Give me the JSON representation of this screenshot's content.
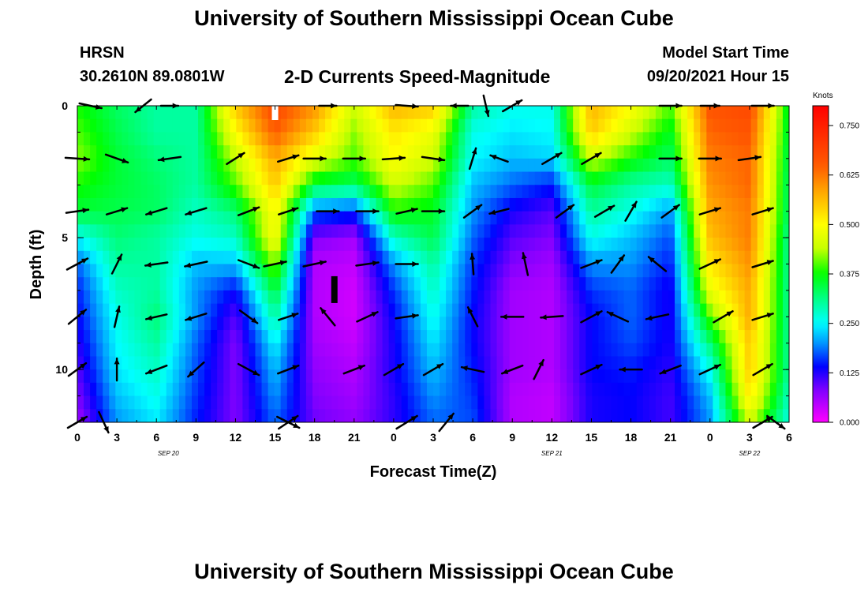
{
  "header": {
    "title_top": "University of Southern Mississippi Ocean Cube",
    "station": "HRSN",
    "coords": "30.2610N  89.0801W",
    "subtitle": "2-D Currents Speed-Magnitude",
    "model_start_label": "Model Start Time",
    "model_start_value": "09/20/2021 Hour 15"
  },
  "footer": {
    "title_bottom": "University of Southern Mississippi Ocean Cube"
  },
  "chart_data": {
    "type": "heatmap",
    "title": "2-D Currents Speed-Magnitude",
    "xlabel": "Forecast Time(Z)",
    "ylabel": "Depth (ft)",
    "colorbar_label": "Knots",
    "x_ticks": [
      "0",
      "3",
      "6",
      "9",
      "12",
      "15",
      "18",
      "21",
      "0",
      "3",
      "6",
      "9",
      "12",
      "15",
      "18",
      "21",
      "0",
      "3",
      "6"
    ],
    "date_labels": [
      {
        "text": "SEP 20",
        "tick_index": 2.3
      },
      {
        "text": "SEP 21",
        "tick_index": 12.0
      },
      {
        "text": "SEP 22",
        "tick_index": 17.0
      }
    ],
    "xlim": [
      0,
      54
    ],
    "ylim": [
      12,
      0
    ],
    "y_ticks": [
      "0",
      "5",
      "10"
    ],
    "y_tick_values": [
      0,
      5,
      10
    ],
    "colorbar_ticks": [
      "0.000",
      "0.125",
      "0.250",
      "0.375",
      "0.500",
      "0.625",
      "0.750"
    ],
    "colorbar_values": [
      0,
      0.125,
      0.25,
      0.375,
      0.5,
      0.625,
      0.75
    ],
    "colorbar_range": [
      0,
      0.8
    ],
    "depths": [
      0,
      1,
      2,
      3,
      4,
      5,
      6,
      7,
      8,
      9,
      10,
      11,
      12
    ],
    "hours": [
      0,
      3,
      6,
      9,
      12,
      15,
      18,
      21,
      24,
      27,
      30,
      33,
      36,
      39,
      42,
      45,
      48,
      51,
      54
    ],
    "speed": [
      [
        0.38,
        0.33,
        0.3,
        0.3,
        0.55,
        0.68,
        0.6,
        0.45,
        0.57,
        0.55,
        0.3,
        0.26,
        0.26,
        0.57,
        0.5,
        0.4,
        0.66,
        0.68,
        0.35
      ],
      [
        0.4,
        0.34,
        0.3,
        0.3,
        0.5,
        0.65,
        0.55,
        0.42,
        0.52,
        0.48,
        0.26,
        0.24,
        0.25,
        0.55,
        0.45,
        0.36,
        0.64,
        0.66,
        0.34
      ],
      [
        0.42,
        0.35,
        0.32,
        0.3,
        0.44,
        0.58,
        0.47,
        0.4,
        0.5,
        0.45,
        0.25,
        0.22,
        0.23,
        0.45,
        0.38,
        0.33,
        0.62,
        0.64,
        0.33
      ],
      [
        0.38,
        0.35,
        0.33,
        0.3,
        0.4,
        0.55,
        0.35,
        0.33,
        0.45,
        0.4,
        0.22,
        0.18,
        0.15,
        0.35,
        0.3,
        0.28,
        0.6,
        0.64,
        0.32
      ],
      [
        0.35,
        0.34,
        0.33,
        0.28,
        0.32,
        0.5,
        0.18,
        0.16,
        0.38,
        0.36,
        0.2,
        0.13,
        0.1,
        0.3,
        0.26,
        0.2,
        0.58,
        0.62,
        0.32
      ],
      [
        0.25,
        0.32,
        0.3,
        0.26,
        0.28,
        0.5,
        0.08,
        0.06,
        0.28,
        0.34,
        0.18,
        0.1,
        0.08,
        0.26,
        0.22,
        0.17,
        0.56,
        0.62,
        0.3
      ],
      [
        0.18,
        0.3,
        0.3,
        0.22,
        0.22,
        0.42,
        0.05,
        0.04,
        0.2,
        0.3,
        0.16,
        0.08,
        0.06,
        0.2,
        0.2,
        0.15,
        0.52,
        0.6,
        0.3
      ],
      [
        0.15,
        0.28,
        0.3,
        0.2,
        0.14,
        0.35,
        0.05,
        0.03,
        0.16,
        0.28,
        0.15,
        0.06,
        0.05,
        0.16,
        0.18,
        0.13,
        0.48,
        0.58,
        0.3
      ],
      [
        0.14,
        0.26,
        0.32,
        0.2,
        0.1,
        0.3,
        0.05,
        0.03,
        0.14,
        0.26,
        0.14,
        0.06,
        0.05,
        0.14,
        0.18,
        0.13,
        0.4,
        0.58,
        0.3
      ],
      [
        0.12,
        0.25,
        0.3,
        0.18,
        0.08,
        0.25,
        0.06,
        0.04,
        0.13,
        0.24,
        0.14,
        0.06,
        0.05,
        0.14,
        0.17,
        0.13,
        0.32,
        0.55,
        0.3
      ],
      [
        0.1,
        0.24,
        0.28,
        0.17,
        0.08,
        0.22,
        0.07,
        0.05,
        0.13,
        0.22,
        0.15,
        0.06,
        0.05,
        0.14,
        0.15,
        0.12,
        0.26,
        0.55,
        0.3
      ],
      [
        0.08,
        0.22,
        0.26,
        0.16,
        0.08,
        0.2,
        0.08,
        0.06,
        0.12,
        0.2,
        0.16,
        0.05,
        0.04,
        0.13,
        0.14,
        0.11,
        0.22,
        0.52,
        0.28
      ],
      [
        0.06,
        0.2,
        0.24,
        0.15,
        0.08,
        0.18,
        0.09,
        0.07,
        0.12,
        0.18,
        0.17,
        0.05,
        0.04,
        0.13,
        0.14,
        0.11,
        0.2,
        0.45,
        0.26
      ]
    ],
    "vector_hours": [
      0,
      4.5,
      9,
      13.5,
      18,
      22.5,
      27,
      31.5,
      36,
      40.5,
      45,
      49.5,
      54
    ],
    "vector_depths": [
      0,
      2,
      4,
      6,
      8,
      10,
      12
    ],
    "vectors": [
      [
        {
          "t": 1,
          "d": 0,
          "dx": 28,
          "dy": 6
        },
        {
          "t": 5,
          "d": 0,
          "dx": -20,
          "dy": 16
        },
        {
          "t": 7,
          "d": 0,
          "dx": 22,
          "dy": 0
        },
        {
          "t": 15,
          "d": 0,
          "dx": 0,
          "dy": 0
        },
        {
          "t": 19,
          "d": 0,
          "dx": 22,
          "dy": 0
        },
        {
          "t": 25,
          "d": 0,
          "dx": 28,
          "dy": 2
        },
        {
          "t": 29,
          "d": 0,
          "dx": -22,
          "dy": 0
        },
        {
          "t": 31,
          "d": 0,
          "dx": 6,
          "dy": 26
        },
        {
          "t": 33,
          "d": 0,
          "dx": 24,
          "dy": -14
        },
        {
          "t": 45,
          "d": 0,
          "dx": 28,
          "dy": 0
        },
        {
          "t": 48,
          "d": 0,
          "dx": 24,
          "dy": 0
        },
        {
          "t": 52,
          "d": 0,
          "dx": 28,
          "dy": 0
        }
      ],
      [
        {
          "t": 0,
          "d": 2,
          "dx": 30,
          "dy": 2
        },
        {
          "t": 3,
          "d": 2,
          "dx": 28,
          "dy": 10
        },
        {
          "t": 7,
          "d": 2,
          "dx": -28,
          "dy": 4
        },
        {
          "t": 12,
          "d": 2,
          "dx": 22,
          "dy": -14
        },
        {
          "t": 16,
          "d": 2,
          "dx": 26,
          "dy": -8
        },
        {
          "t": 18,
          "d": 2,
          "dx": 28,
          "dy": 0
        },
        {
          "t": 21,
          "d": 2,
          "dx": 28,
          "dy": 0
        },
        {
          "t": 24,
          "d": 2,
          "dx": 28,
          "dy": -2
        },
        {
          "t": 27,
          "d": 2,
          "dx": 28,
          "dy": 4
        },
        {
          "t": 30,
          "d": 2,
          "dx": 8,
          "dy": -26
        },
        {
          "t": 32,
          "d": 2,
          "dx": -22,
          "dy": -8
        },
        {
          "t": 36,
          "d": 2,
          "dx": 24,
          "dy": -14
        },
        {
          "t": 39,
          "d": 2,
          "dx": 24,
          "dy": -14
        },
        {
          "t": 45,
          "d": 2,
          "dx": 28,
          "dy": 0
        },
        {
          "t": 48,
          "d": 2,
          "dx": 28,
          "dy": 0
        },
        {
          "t": 51,
          "d": 2,
          "dx": 28,
          "dy": -4
        }
      ],
      [
        {
          "t": 0,
          "d": 4,
          "dx": 28,
          "dy": -4
        },
        {
          "t": 3,
          "d": 4,
          "dx": 26,
          "dy": -8
        },
        {
          "t": 6,
          "d": 4,
          "dx": -26,
          "dy": 8
        },
        {
          "t": 9,
          "d": 4,
          "dx": -26,
          "dy": 8
        },
        {
          "t": 13,
          "d": 4,
          "dx": 26,
          "dy": -10
        },
        {
          "t": 16,
          "d": 4,
          "dx": 24,
          "dy": -8
        },
        {
          "t": 19,
          "d": 4,
          "dx": 28,
          "dy": 0
        },
        {
          "t": 22,
          "d": 4,
          "dx": 28,
          "dy": 0
        },
        {
          "t": 25,
          "d": 4,
          "dx": 26,
          "dy": -6
        },
        {
          "t": 27,
          "d": 4,
          "dx": 28,
          "dy": 0
        },
        {
          "t": 30,
          "d": 4,
          "dx": 22,
          "dy": -16
        },
        {
          "t": 32,
          "d": 4,
          "dx": -24,
          "dy": 6
        },
        {
          "t": 37,
          "d": 4,
          "dx": 22,
          "dy": -16
        },
        {
          "t": 40,
          "d": 4,
          "dx": 24,
          "dy": -14
        },
        {
          "t": 42,
          "d": 4,
          "dx": 14,
          "dy": -24
        },
        {
          "t": 45,
          "d": 4,
          "dx": 22,
          "dy": -16
        },
        {
          "t": 48,
          "d": 4,
          "dx": 26,
          "dy": -8
        },
        {
          "t": 52,
          "d": 4,
          "dx": 26,
          "dy": -8
        }
      ],
      [
        {
          "t": 0,
          "d": 6,
          "dx": 26,
          "dy": -14
        },
        {
          "t": 3,
          "d": 6,
          "dx": 12,
          "dy": -24
        },
        {
          "t": 6,
          "d": 6,
          "dx": -28,
          "dy": 4
        },
        {
          "t": 9,
          "d": 6,
          "dx": -28,
          "dy": 6
        },
        {
          "t": 13,
          "d": 6,
          "dx": 26,
          "dy": 10
        },
        {
          "t": 15,
          "d": 6,
          "dx": 28,
          "dy": -6
        },
        {
          "t": 18,
          "d": 6,
          "dx": 28,
          "dy": -6
        },
        {
          "t": 22,
          "d": 6,
          "dx": 28,
          "dy": -4
        },
        {
          "t": 25,
          "d": 6,
          "dx": 28,
          "dy": 0
        },
        {
          "t": 30,
          "d": 6,
          "dx": -2,
          "dy": -26
        },
        {
          "t": 34,
          "d": 6,
          "dx": -6,
          "dy": -28
        },
        {
          "t": 39,
          "d": 6,
          "dx": 26,
          "dy": -10
        },
        {
          "t": 41,
          "d": 6,
          "dx": 16,
          "dy": -22
        },
        {
          "t": 44,
          "d": 6,
          "dx": -22,
          "dy": -18
        },
        {
          "t": 48,
          "d": 6,
          "dx": 26,
          "dy": -12
        },
        {
          "t": 52,
          "d": 6,
          "dx": 26,
          "dy": -8
        }
      ],
      [
        {
          "t": 0,
          "d": 8,
          "dx": 22,
          "dy": -18
        },
        {
          "t": 3,
          "d": 8,
          "dx": 6,
          "dy": -26
        },
        {
          "t": 6,
          "d": 8,
          "dx": -26,
          "dy": 6
        },
        {
          "t": 9,
          "d": 8,
          "dx": -26,
          "dy": 8
        },
        {
          "t": 13,
          "d": 8,
          "dx": 22,
          "dy": 16
        },
        {
          "t": 16,
          "d": 8,
          "dx": 24,
          "dy": -8
        },
        {
          "t": 19,
          "d": 8,
          "dx": -18,
          "dy": -22
        },
        {
          "t": 22,
          "d": 8,
          "dx": 26,
          "dy": -12
        },
        {
          "t": 25,
          "d": 8,
          "dx": 28,
          "dy": -4
        },
        {
          "t": 30,
          "d": 8,
          "dx": -12,
          "dy": -24
        },
        {
          "t": 33,
          "d": 8,
          "dx": -28,
          "dy": 0
        },
        {
          "t": 36,
          "d": 8,
          "dx": -28,
          "dy": 2
        },
        {
          "t": 39,
          "d": 8,
          "dx": 26,
          "dy": -14
        },
        {
          "t": 41,
          "d": 8,
          "dx": -26,
          "dy": -12
        },
        {
          "t": 44,
          "d": 8,
          "dx": -28,
          "dy": 6
        },
        {
          "t": 49,
          "d": 8,
          "dx": 24,
          "dy": -14
        },
        {
          "t": 52,
          "d": 8,
          "dx": 26,
          "dy": -8
        }
      ],
      [
        {
          "t": 0,
          "d": 10,
          "dx": 22,
          "dy": -16
        },
        {
          "t": 3,
          "d": 10,
          "dx": 0,
          "dy": -28
        },
        {
          "t": 6,
          "d": 10,
          "dx": -26,
          "dy": 10
        },
        {
          "t": 9,
          "d": 10,
          "dx": -20,
          "dy": 18
        },
        {
          "t": 13,
          "d": 10,
          "dx": 26,
          "dy": 14
        },
        {
          "t": 16,
          "d": 10,
          "dx": 26,
          "dy": -10
        },
        {
          "t": 21,
          "d": 10,
          "dx": 26,
          "dy": -10
        },
        {
          "t": 24,
          "d": 10,
          "dx": 24,
          "dy": -14
        },
        {
          "t": 27,
          "d": 10,
          "dx": 24,
          "dy": -14
        },
        {
          "t": 30,
          "d": 10,
          "dx": -28,
          "dy": -6
        },
        {
          "t": 33,
          "d": 10,
          "dx": -26,
          "dy": 10
        },
        {
          "t": 35,
          "d": 10,
          "dx": 12,
          "dy": -24
        },
        {
          "t": 39,
          "d": 10,
          "dx": 26,
          "dy": -12
        },
        {
          "t": 42,
          "d": 10,
          "dx": -28,
          "dy": 0
        },
        {
          "t": 45,
          "d": 10,
          "dx": -26,
          "dy": 10
        },
        {
          "t": 48,
          "d": 10,
          "dx": 26,
          "dy": -12
        },
        {
          "t": 52,
          "d": 10,
          "dx": 24,
          "dy": -14
        }
      ],
      [
        {
          "t": 0,
          "d": 12,
          "dx": 24,
          "dy": -14
        },
        {
          "t": 2,
          "d": 12,
          "dx": 12,
          "dy": 26
        },
        {
          "t": 16,
          "d": 12,
          "dx": 24,
          "dy": -16
        },
        {
          "t": 16,
          "d": 12,
          "dx": 28,
          "dy": 14
        },
        {
          "t": 25,
          "d": 12,
          "dx": 26,
          "dy": -16
        },
        {
          "t": 28,
          "d": 12,
          "dx": 18,
          "dy": -22
        },
        {
          "t": 52,
          "d": 12,
          "dx": 24,
          "dy": -14
        },
        {
          "t": 53,
          "d": 12,
          "dx": 22,
          "dy": 16
        }
      ]
    ],
    "markers": [
      {
        "t": 15,
        "d": 0.15,
        "kind": "white-tick"
      },
      {
        "t": 19.5,
        "d": 7.0,
        "kind": "thick-bar"
      }
    ]
  }
}
